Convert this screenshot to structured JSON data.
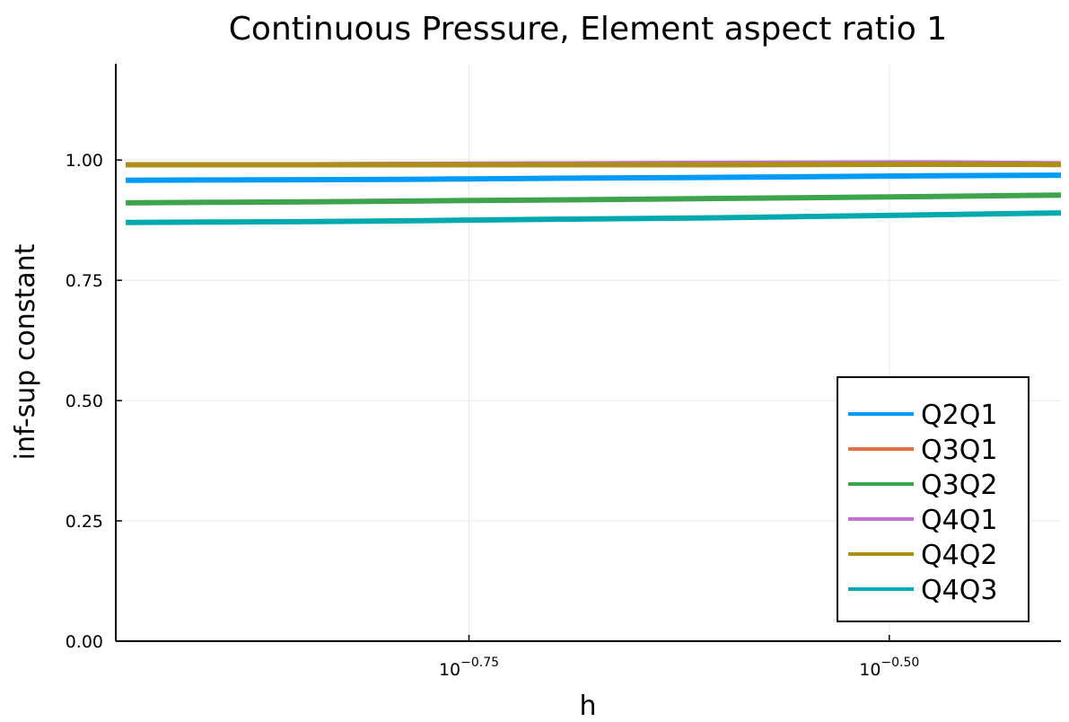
{
  "chart_data": {
    "type": "line",
    "title": "Continuous Pressure, Element aspect ratio 1",
    "xlabel": "h",
    "ylabel": "inf-sup constant",
    "xscale": "log10",
    "xlim": [
      0.1096,
      0.4
    ],
    "ylim": [
      0.0,
      1.2
    ],
    "grid": true,
    "legend_position": "bottom-right",
    "x_ticks": [
      {
        "value": 0.1778,
        "base": "10",
        "exponent": "−0.75"
      },
      {
        "value": 0.3162,
        "base": "10",
        "exponent": "−0.50"
      }
    ],
    "y_ticks": [
      {
        "value": 0.0,
        "label": "0.00"
      },
      {
        "value": 0.25,
        "label": "0.25"
      },
      {
        "value": 0.5,
        "label": "0.50"
      },
      {
        "value": 0.75,
        "label": "0.75"
      },
      {
        "value": 1.0,
        "label": "1.00"
      }
    ],
    "x": [
      0.1111,
      0.125,
      0.1429,
      0.1667,
      0.2,
      0.25,
      0.3333,
      0.5
    ],
    "series": [
      {
        "name": "Q2Q1",
        "color": "#009af9",
        "values": [
          0.958,
          0.9585,
          0.959,
          0.96,
          0.962,
          0.964,
          0.967,
          0.97
        ]
      },
      {
        "name": "Q3Q1",
        "color": "#e26f46",
        "values": [
          0.99,
          0.99,
          0.99,
          0.991,
          0.991,
          0.992,
          0.993,
          0.99
        ]
      },
      {
        "name": "Q3Q2",
        "color": "#3da44d",
        "values": [
          0.911,
          0.912,
          0.913,
          0.915,
          0.917,
          0.92,
          0.924,
          0.931
        ]
      },
      {
        "name": "Q4Q1",
        "color": "#c271d2",
        "values": [
          0.99,
          0.99,
          0.99,
          0.991,
          0.992,
          0.993,
          0.994,
          0.99
        ]
      },
      {
        "name": "Q4Q2",
        "color": "#ac8e18",
        "values": [
          0.99,
          0.99,
          0.99,
          0.99,
          0.99,
          0.99,
          0.991,
          0.99
        ]
      },
      {
        "name": "Q4Q3",
        "color": "#00a9ad",
        "values": [
          0.87,
          0.871,
          0.872,
          0.874,
          0.877,
          0.88,
          0.886,
          0.895
        ]
      }
    ]
  }
}
